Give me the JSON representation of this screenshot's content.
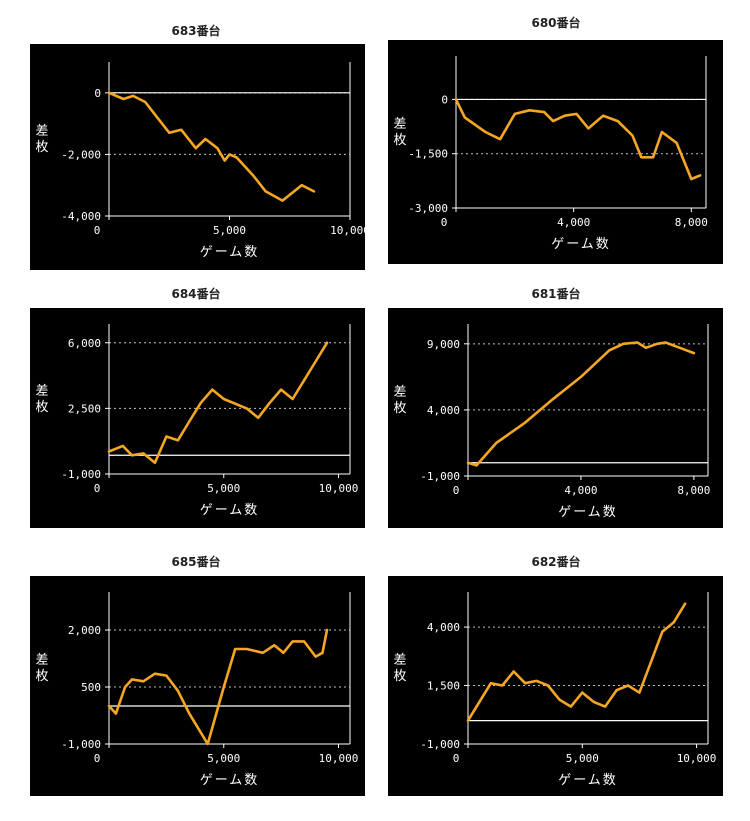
{
  "page": {
    "background": "#ffffff",
    "panel_background": "#000000",
    "line_color": "#f5a623",
    "axis_color": "#ffffff",
    "grid_color": "#ffffff"
  },
  "chart_data": [
    {
      "type": "line",
      "title": "683番台",
      "xlabel": "ゲーム数",
      "ylabel": "差枚",
      "xlim": [
        0,
        10000
      ],
      "ylim": [
        -4000,
        1000
      ],
      "xticks": [
        0,
        5000,
        10000
      ],
      "xtick_labels": [
        "0",
        "5,000",
        "10,000"
      ],
      "yticks": [
        0,
        -2000,
        -4000
      ],
      "ytick_labels": [
        "0",
        "-2,000",
        "-4,000"
      ],
      "grid": "dotted horizontal",
      "zero_line": true,
      "series": [
        {
          "x": [
            0,
            600,
            1000,
            1500,
            2000,
            2500,
            3000,
            3600,
            4000,
            4500,
            4800,
            5000,
            5300,
            6000,
            6500,
            7200,
            8000,
            8500
          ],
          "values": [
            0,
            -200,
            -100,
            -300,
            -800,
            -1300,
            -1200,
            -1800,
            -1500,
            -1800,
            -2200,
            -2000,
            -2100,
            -2700,
            -3200,
            -3500,
            -3000,
            -3200
          ]
        }
      ]
    },
    {
      "type": "line",
      "title": "680番台",
      "xlabel": "ゲーム数",
      "ylabel": "差枚",
      "xlim": [
        0,
        8500
      ],
      "ylim": [
        -3000,
        1200
      ],
      "xticks": [
        0,
        4000,
        8000
      ],
      "xtick_labels": [
        "0",
        "4,000",
        "8,000"
      ],
      "yticks": [
        0,
        -1500,
        -3000
      ],
      "ytick_labels": [
        "0",
        "-1,500",
        "-3,000"
      ],
      "grid": "dotted horizontal",
      "zero_line": true,
      "series": [
        {
          "x": [
            0,
            300,
            1000,
            1500,
            2000,
            2500,
            3000,
            3300,
            3700,
            4100,
            4500,
            5000,
            5500,
            6000,
            6300,
            6700,
            7000,
            7500,
            8000,
            8300
          ],
          "values": [
            0,
            -500,
            -900,
            -1100,
            -400,
            -300,
            -350,
            -600,
            -450,
            -400,
            -800,
            -450,
            -600,
            -1000,
            -1600,
            -1600,
            -900,
            -1200,
            -2200,
            -2100
          ]
        }
      ]
    },
    {
      "type": "line",
      "title": "684番台",
      "xlabel": "ゲーム数",
      "ylabel": "差枚",
      "xlim": [
        0,
        10500
      ],
      "ylim": [
        -1000,
        7000
      ],
      "xticks": [
        0,
        5000,
        10000
      ],
      "xtick_labels": [
        "0",
        "5,000",
        "10,000"
      ],
      "yticks": [
        6000,
        2500,
        -1000
      ],
      "ytick_labels": [
        "6,000",
        "2,500",
        "-1,000"
      ],
      "grid": "dotted horizontal",
      "zero_line": true,
      "series": [
        {
          "x": [
            0,
            600,
            1000,
            1500,
            2000,
            2500,
            3000,
            3500,
            4000,
            4500,
            5000,
            6000,
            6500,
            7000,
            7500,
            8000,
            8500,
            9000,
            9500
          ],
          "values": [
            200,
            500,
            0,
            100,
            -400,
            1000,
            800,
            1800,
            2800,
            3500,
            3000,
            2500,
            2000,
            2800,
            3500,
            3000,
            4000,
            5000,
            6000
          ]
        }
      ]
    },
    {
      "type": "line",
      "title": "681番台",
      "xlabel": "ゲーム数",
      "ylabel": "差枚",
      "xlim": [
        0,
        8500
      ],
      "ylim": [
        -1000,
        10500
      ],
      "xticks": [
        0,
        4000,
        8000
      ],
      "xtick_labels": [
        "0",
        "4,000",
        "8,000"
      ],
      "yticks": [
        9000,
        4000,
        -1000
      ],
      "ytick_labels": [
        "9,000",
        "4,000",
        "-1,000"
      ],
      "grid": "dotted horizontal",
      "zero_line": true,
      "series": [
        {
          "x": [
            0,
            300,
            1000,
            2000,
            3000,
            4000,
            5000,
            5500,
            6000,
            6300,
            6700,
            7000,
            7500,
            8000
          ],
          "values": [
            0,
            -200,
            1500,
            3000,
            4800,
            6500,
            8500,
            9000,
            9100,
            8700,
            9000,
            9100,
            8700,
            8300
          ]
        }
      ]
    },
    {
      "type": "line",
      "title": "685番台",
      "xlabel": "ゲーム数",
      "ylabel": "差枚",
      "xlim": [
        0,
        10500
      ],
      "ylim": [
        -1000,
        3000
      ],
      "xticks": [
        0,
        5000,
        10000
      ],
      "xtick_labels": [
        "0",
        "5,000",
        "10,000"
      ],
      "yticks": [
        2000,
        500,
        -1000
      ],
      "ytick_labels": [
        "2,000",
        "500",
        "-1,000"
      ],
      "grid": "dotted horizontal",
      "zero_line": true,
      "series": [
        {
          "x": [
            0,
            300,
            700,
            1000,
            1500,
            2000,
            2500,
            3000,
            3500,
            4000,
            4300,
            5000,
            5500,
            6000,
            6700,
            7200,
            7600,
            8000,
            8500,
            9000,
            9300,
            9500
          ],
          "values": [
            0,
            -200,
            500,
            700,
            650,
            850,
            800,
            400,
            -200,
            -700,
            -1000,
            500,
            1500,
            1500,
            1400,
            1600,
            1400,
            1700,
            1700,
            1300,
            1400,
            2000
          ]
        }
      ]
    },
    {
      "type": "line",
      "title": "682番台",
      "xlabel": "ゲーム数",
      "ylabel": "差枚",
      "xlim": [
        0,
        10500
      ],
      "ylim": [
        -1000,
        5500
      ],
      "xticks": [
        0,
        5000,
        10000
      ],
      "xtick_labels": [
        "0",
        "5,000",
        "10,000"
      ],
      "yticks": [
        4000,
        1500,
        -1000
      ],
      "ytick_labels": [
        "4,000",
        "1,500",
        "-1,000"
      ],
      "grid": "dotted horizontal",
      "zero_line": true,
      "series": [
        {
          "x": [
            0,
            500,
            1000,
            1500,
            2000,
            2500,
            3000,
            3500,
            4000,
            4500,
            5000,
            5500,
            6000,
            6500,
            7000,
            7500,
            8000,
            8500,
            9000,
            9500
          ],
          "values": [
            0,
            800,
            1600,
            1500,
            2100,
            1600,
            1700,
            1500,
            900,
            600,
            1200,
            800,
            600,
            1300,
            1500,
            1200,
            2500,
            3800,
            4200,
            5000
          ]
        }
      ]
    }
  ]
}
